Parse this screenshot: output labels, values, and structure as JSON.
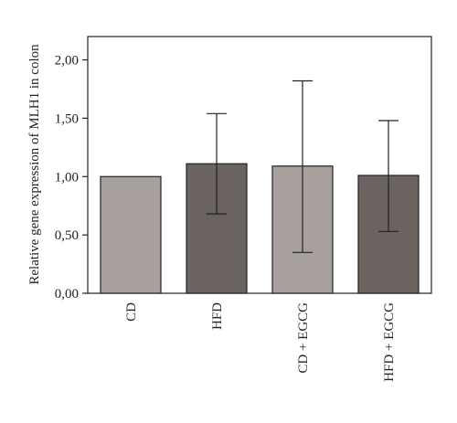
{
  "chart_data": {
    "type": "bar",
    "title": "",
    "xlabel": "",
    "ylabel": "Relative gene expression of MLH1 in colon",
    "ylim": [
      0,
      2.2
    ],
    "y_ticks": [
      0,
      0.5,
      1.0,
      1.5,
      2.0
    ],
    "y_tick_labels": [
      "0,00",
      "0,50",
      "1,00",
      "1,50",
      "2,00"
    ],
    "categories": [
      "CD",
      "HFD",
      "CD + EGCG",
      "HFD + EGCG"
    ],
    "values": [
      1.0,
      1.11,
      1.09,
      1.01
    ],
    "error_low": [
      1.0,
      0.68,
      0.35,
      0.53
    ],
    "error_high": [
      1.0,
      1.54,
      1.82,
      1.48
    ],
    "bar_colors": [
      "#a8a09c",
      "#6b6360",
      "#a8a09c",
      "#6b6360"
    ],
    "grid": false,
    "legend": "none"
  }
}
